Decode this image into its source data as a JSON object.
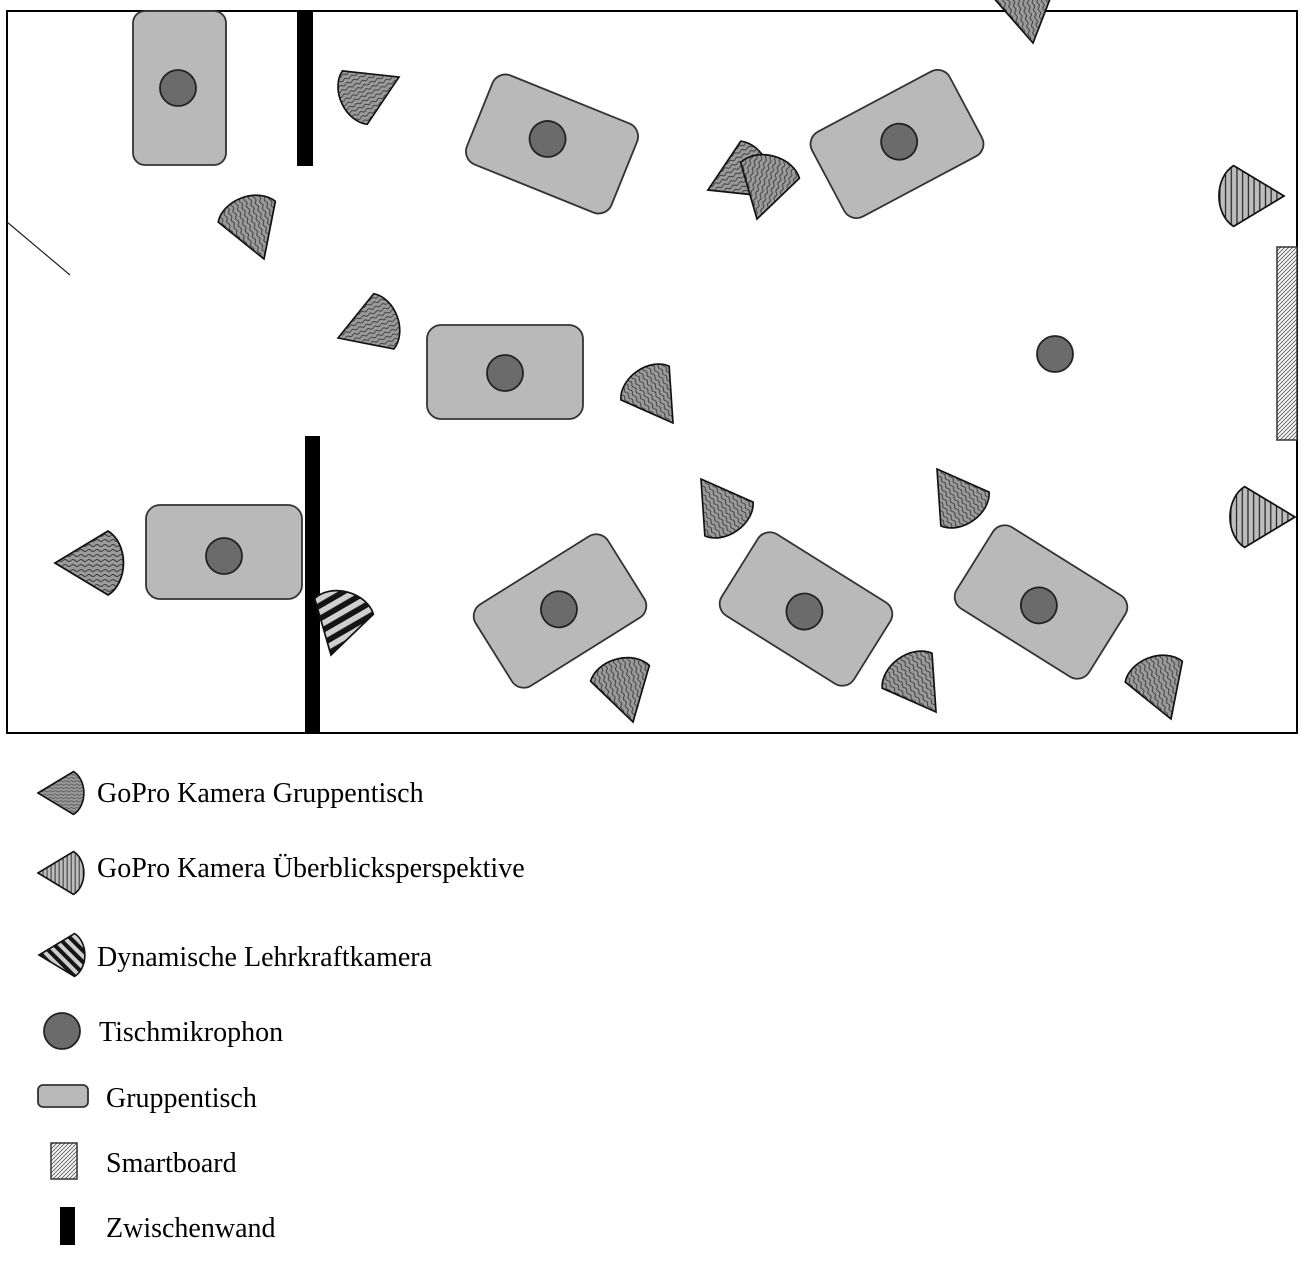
{
  "legend": {
    "gopro_group_label": "GoPro Kamera Gruppentisch",
    "gopro_overview_label": "GoPro Kamera Überblicksperspektive",
    "teacher_camera_label": "Dynamische Lehrkraftkamera",
    "microphone_label": "Tischmikrophon",
    "group_table_label": "Gruppentisch",
    "smartboard_label": "Smartboard",
    "partition_wall_label": "Zwischenwand"
  },
  "colors": {
    "table_fill": "#b9b9b9",
    "microphone_fill": "#6b6b6b",
    "camera_fill": "#8f8f8f",
    "wall_fill": "#000000",
    "outline": "#333333"
  },
  "icons": {
    "gopro_group": "wavy-hatched-camera-icon",
    "gopro_overview": "vertical-striped-camera-icon",
    "teacher_camera": "diagonal-striped-camera-icon",
    "microphone": "circle-icon",
    "group_table": "rounded-rectangle-icon",
    "smartboard": "hatched-rectangle-icon",
    "partition_wall": "black-bar-icon"
  }
}
